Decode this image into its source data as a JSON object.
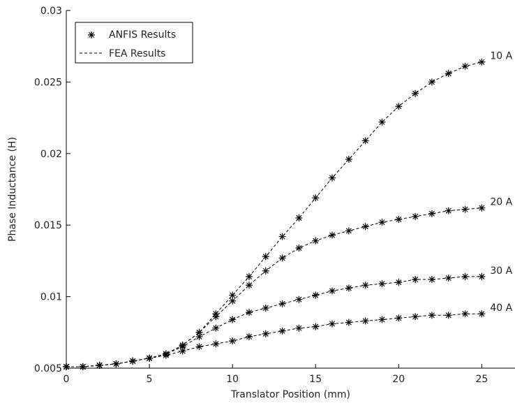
{
  "chart_data": {
    "type": "line",
    "title": "",
    "xlabel": "Translator Position (mm)",
    "ylabel": "Phase Inductance (H)",
    "xlim": [
      0,
      27
    ],
    "ylim": [
      0.005,
      0.03
    ],
    "xticks": [
      0,
      5,
      10,
      15,
      20,
      25
    ],
    "xtick_labels": [
      "0",
      "5",
      "10",
      "15",
      "20",
      "25"
    ],
    "yticks": [
      0.005,
      0.01,
      0.015,
      0.02,
      0.025,
      0.03
    ],
    "ytick_labels": [
      "0.005",
      "0.01",
      "0.015",
      "0.02",
      "0.025",
      "0.03"
    ],
    "grid": false,
    "legend": {
      "placement": "top-left",
      "entries": [
        {
          "label": "ANFIS Results",
          "style": "asterisk-marker"
        },
        {
          "label": "FEA Results",
          "style": "dashed-line"
        }
      ]
    },
    "x": [
      0,
      1,
      2,
      3,
      4,
      5,
      6,
      7,
      8,
      9,
      10,
      11,
      12,
      13,
      14,
      15,
      16,
      17,
      18,
      19,
      20,
      21,
      22,
      23,
      24,
      25
    ],
    "series": [
      {
        "name": "10 A",
        "values": [
          0.0051,
          0.0051,
          0.0052,
          0.0053,
          0.0055,
          0.0057,
          0.006,
          0.0066,
          0.0075,
          0.0088,
          0.0101,
          0.0114,
          0.0128,
          0.0142,
          0.0155,
          0.0169,
          0.0183,
          0.0196,
          0.0209,
          0.0222,
          0.0233,
          0.0242,
          0.025,
          0.0256,
          0.0261,
          0.0264
        ]
      },
      {
        "name": "20 A",
        "values": [
          0.0051,
          0.0051,
          0.0052,
          0.0053,
          0.0055,
          0.0057,
          0.006,
          0.0066,
          0.0075,
          0.0086,
          0.0097,
          0.0108,
          0.0118,
          0.0127,
          0.0134,
          0.0139,
          0.0143,
          0.0146,
          0.0149,
          0.0152,
          0.0154,
          0.0156,
          0.0158,
          0.016,
          0.0161,
          0.0162
        ]
      },
      {
        "name": "30 A",
        "values": [
          0.0051,
          0.0051,
          0.0052,
          0.0053,
          0.0055,
          0.0057,
          0.006,
          0.0065,
          0.0072,
          0.0078,
          0.0084,
          0.0089,
          0.0092,
          0.0095,
          0.0098,
          0.0101,
          0.0104,
          0.0106,
          0.0108,
          0.0109,
          0.011,
          0.0112,
          0.0112,
          0.0113,
          0.0114,
          0.0114
        ]
      },
      {
        "name": "40 A",
        "values": [
          0.0051,
          0.0051,
          0.0052,
          0.0053,
          0.0055,
          0.0057,
          0.0059,
          0.0062,
          0.0065,
          0.0067,
          0.0069,
          0.0072,
          0.0074,
          0.0076,
          0.0078,
          0.0079,
          0.0081,
          0.0082,
          0.0083,
          0.0084,
          0.0085,
          0.0086,
          0.0087,
          0.0087,
          0.0088,
          0.0088
        ]
      }
    ]
  }
}
